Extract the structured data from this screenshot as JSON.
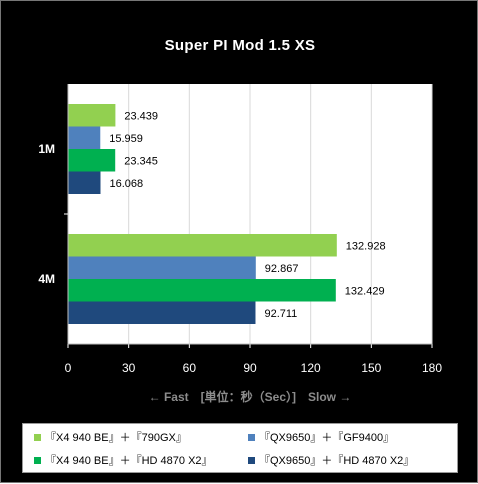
{
  "chart_data": {
    "type": "bar",
    "orientation": "horizontal",
    "title": "Super PI Mod 1.5 XS",
    "axis_note": "← Fast　[単位：秒（Sec）]　Slow →",
    "categories": [
      "1M",
      "4M"
    ],
    "series": [
      {
        "name": "『X4 940 BE』＋『790GX』",
        "color": "#92d050",
        "values": [
          23.439,
          132.928
        ]
      },
      {
        "name": "『QX9650』＋『GF9400』",
        "color": "#4f81bd",
        "values": [
          15.959,
          92.867
        ]
      },
      {
        "name": "『X4 940 BE』＋『HD 4870 X2』",
        "color": "#00b050",
        "values": [
          23.345,
          132.429
        ]
      },
      {
        "name": "『QX9650』＋『HD 4870 X2』",
        "color": "#1f497d",
        "values": [
          16.068,
          92.711
        ]
      }
    ],
    "x_ticks": [
      0,
      30,
      60,
      90,
      120,
      150,
      180
    ],
    "xlim": [
      0,
      180
    ],
    "grid": true,
    "legend_position": "bottom"
  }
}
